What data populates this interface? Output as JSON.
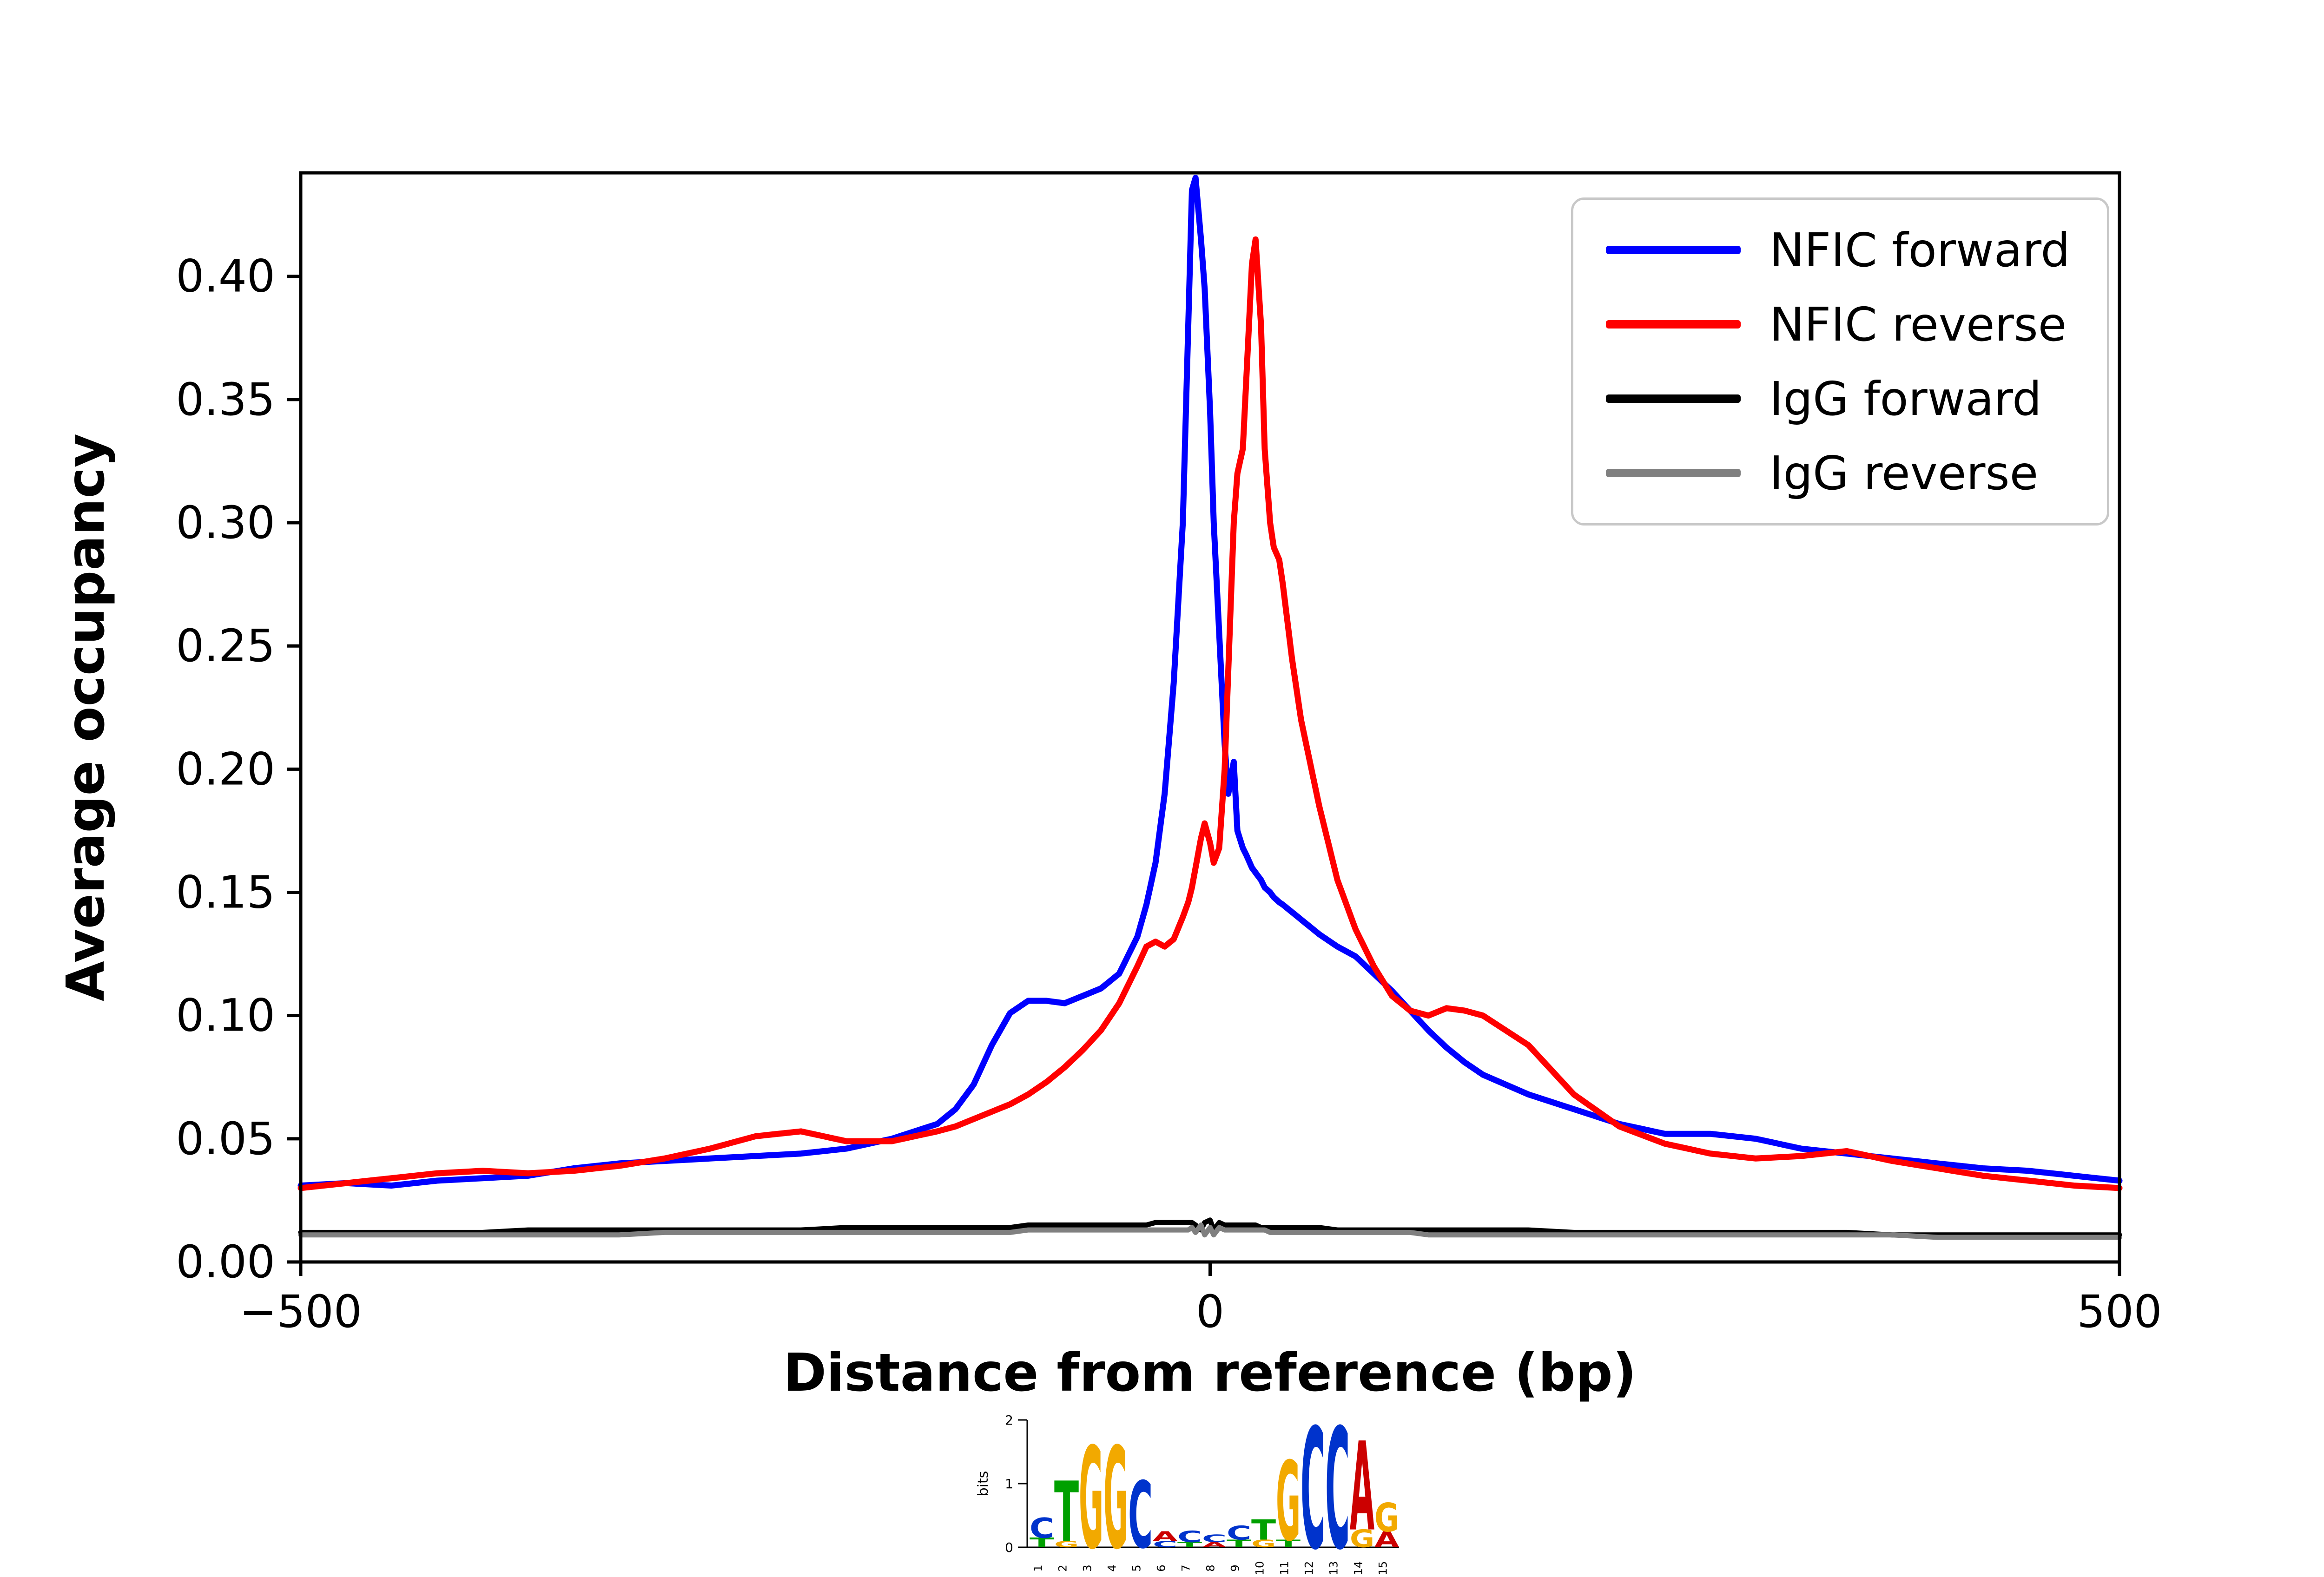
{
  "chart_data": {
    "type": "line",
    "title": "",
    "xlabel": "Distance from reference (bp)",
    "ylabel": "Average occupancy",
    "xlim": [
      -500,
      500
    ],
    "ylim": [
      0,
      0.442
    ],
    "grid": false,
    "legend_position": "upper right",
    "xticks": {
      "values": [
        -500,
        0,
        500
      ],
      "labels": [
        "−500",
        "0",
        "500"
      ]
    },
    "yticks": {
      "values": [
        0.0,
        0.05,
        0.1,
        0.15,
        0.2,
        0.25,
        0.3,
        0.35,
        0.4
      ],
      "labels": [
        "0.00",
        "0.05",
        "0.10",
        "0.15",
        "0.20",
        "0.25",
        "0.30",
        "0.35",
        "0.40"
      ]
    },
    "x": [
      -500,
      -475,
      -450,
      -425,
      -400,
      -375,
      -350,
      -325,
      -300,
      -275,
      -250,
      -225,
      -200,
      -175,
      -150,
      -140,
      -130,
      -120,
      -110,
      -100,
      -90,
      -80,
      -70,
      -60,
      -50,
      -40,
      -35,
      -30,
      -25,
      -20,
      -15,
      -12,
      -10,
      -8,
      -5,
      -3,
      0,
      2,
      5,
      8,
      10,
      13,
      15,
      18,
      20,
      23,
      25,
      28,
      30,
      33,
      35,
      38,
      40,
      45,
      50,
      60,
      70,
      80,
      90,
      100,
      110,
      120,
      130,
      140,
      150,
      175,
      200,
      225,
      250,
      275,
      300,
      325,
      350,
      375,
      400,
      425,
      450,
      475,
      500
    ],
    "series": [
      {
        "name": "NFIC forward",
        "color": "#0000ff",
        "linewidth": 13,
        "values": [
          0.031,
          0.032,
          0.031,
          0.033,
          0.034,
          0.035,
          0.038,
          0.04,
          0.041,
          0.042,
          0.043,
          0.044,
          0.046,
          0.05,
          0.056,
          0.062,
          0.072,
          0.088,
          0.101,
          0.106,
          0.106,
          0.105,
          0.108,
          0.111,
          0.117,
          0.132,
          0.145,
          0.162,
          0.19,
          0.235,
          0.3,
          0.38,
          0.435,
          0.44,
          0.415,
          0.395,
          0.345,
          0.3,
          0.255,
          0.21,
          0.19,
          0.203,
          0.175,
          0.168,
          0.165,
          0.16,
          0.158,
          0.155,
          0.152,
          0.15,
          0.148,
          0.146,
          0.145,
          0.142,
          0.139,
          0.133,
          0.128,
          0.124,
          0.117,
          0.11,
          0.102,
          0.094,
          0.087,
          0.081,
          0.076,
          0.068,
          0.062,
          0.056,
          0.052,
          0.052,
          0.05,
          0.046,
          0.044,
          0.042,
          0.04,
          0.038,
          0.037,
          0.035,
          0.033
        ]
      },
      {
        "name": "NFIC reverse",
        "color": "#ff0000",
        "linewidth": 13,
        "values": [
          0.03,
          0.032,
          0.034,
          0.036,
          0.037,
          0.036,
          0.037,
          0.039,
          0.042,
          0.046,
          0.051,
          0.053,
          0.049,
          0.049,
          0.053,
          0.055,
          0.058,
          0.061,
          0.064,
          0.068,
          0.073,
          0.079,
          0.086,
          0.094,
          0.105,
          0.12,
          0.128,
          0.13,
          0.128,
          0.131,
          0.14,
          0.146,
          0.152,
          0.16,
          0.172,
          0.178,
          0.17,
          0.162,
          0.168,
          0.2,
          0.24,
          0.3,
          0.32,
          0.33,
          0.36,
          0.405,
          0.415,
          0.38,
          0.33,
          0.3,
          0.29,
          0.285,
          0.275,
          0.245,
          0.22,
          0.185,
          0.155,
          0.135,
          0.12,
          0.108,
          0.102,
          0.1,
          0.103,
          0.102,
          0.1,
          0.088,
          0.068,
          0.055,
          0.048,
          0.044,
          0.042,
          0.043,
          0.045,
          0.041,
          0.038,
          0.035,
          0.033,
          0.031,
          0.03
        ]
      },
      {
        "name": "IgG forward",
        "color": "#000000",
        "linewidth": 11,
        "values": [
          0.012,
          0.012,
          0.012,
          0.012,
          0.012,
          0.013,
          0.013,
          0.013,
          0.013,
          0.013,
          0.013,
          0.013,
          0.014,
          0.014,
          0.014,
          0.014,
          0.014,
          0.014,
          0.014,
          0.015,
          0.015,
          0.015,
          0.015,
          0.015,
          0.015,
          0.015,
          0.015,
          0.016,
          0.016,
          0.016,
          0.016,
          0.016,
          0.016,
          0.015,
          0.013,
          0.016,
          0.017,
          0.013,
          0.016,
          0.015,
          0.015,
          0.015,
          0.015,
          0.015,
          0.015,
          0.015,
          0.015,
          0.014,
          0.014,
          0.014,
          0.014,
          0.014,
          0.014,
          0.014,
          0.014,
          0.014,
          0.013,
          0.013,
          0.013,
          0.013,
          0.013,
          0.013,
          0.013,
          0.013,
          0.013,
          0.013,
          0.012,
          0.012,
          0.012,
          0.012,
          0.012,
          0.012,
          0.012,
          0.011,
          0.011,
          0.011,
          0.011,
          0.011,
          0.011
        ]
      },
      {
        "name": "IgG reverse",
        "color": "#808080",
        "linewidth": 11,
        "values": [
          0.011,
          0.011,
          0.011,
          0.011,
          0.011,
          0.011,
          0.011,
          0.011,
          0.012,
          0.012,
          0.012,
          0.012,
          0.012,
          0.012,
          0.012,
          0.012,
          0.012,
          0.012,
          0.012,
          0.013,
          0.013,
          0.013,
          0.013,
          0.013,
          0.013,
          0.013,
          0.013,
          0.013,
          0.013,
          0.013,
          0.013,
          0.013,
          0.014,
          0.012,
          0.015,
          0.011,
          0.014,
          0.011,
          0.014,
          0.013,
          0.013,
          0.013,
          0.013,
          0.013,
          0.013,
          0.013,
          0.013,
          0.013,
          0.013,
          0.012,
          0.012,
          0.012,
          0.012,
          0.012,
          0.012,
          0.012,
          0.012,
          0.012,
          0.012,
          0.012,
          0.012,
          0.011,
          0.011,
          0.011,
          0.011,
          0.011,
          0.011,
          0.011,
          0.011,
          0.011,
          0.011,
          0.011,
          0.011,
          0.011,
          0.01,
          0.01,
          0.01,
          0.01,
          0.01
        ]
      }
    ]
  },
  "sequence_logo": {
    "ylabel": "bits",
    "yticks": [
      "0",
      "1",
      "2"
    ],
    "positions": [
      "1",
      "2",
      "3",
      "4",
      "5",
      "6",
      "7",
      "8",
      "9",
      "10",
      "11",
      "12",
      "13",
      "14",
      "15"
    ],
    "colors": {
      "A": "#cc0000",
      "C": "#0033cc",
      "G": "#f2a900",
      "T": "#00a000"
    },
    "stacks": [
      [
        [
          "T",
          0.15
        ],
        [
          "C",
          0.32
        ]
      ],
      [
        [
          "G",
          0.1
        ],
        [
          "T",
          0.95
        ]
      ],
      [
        [
          "G",
          1.6
        ]
      ],
      [
        [
          "G",
          1.6
        ]
      ],
      [
        [
          "C",
          1.05
        ]
      ],
      [
        [
          "C",
          0.1
        ],
        [
          "A",
          0.15
        ]
      ],
      [
        [
          "T",
          0.08
        ],
        [
          "C",
          0.18
        ]
      ],
      [
        [
          "A",
          0.08
        ],
        [
          "C",
          0.12
        ]
      ],
      [
        [
          "T",
          0.12
        ],
        [
          "C",
          0.22
        ]
      ],
      [
        [
          "G",
          0.12
        ],
        [
          "T",
          0.32
        ]
      ],
      [
        [
          "T",
          0.12
        ],
        [
          "G",
          1.25
        ]
      ],
      [
        [
          "C",
          1.9
        ]
      ],
      [
        [
          "C",
          1.9
        ]
      ],
      [
        [
          "G",
          0.28
        ],
        [
          "A",
          1.4
        ]
      ],
      [
        [
          "A",
          0.25
        ],
        [
          "G",
          0.45
        ]
      ]
    ]
  }
}
